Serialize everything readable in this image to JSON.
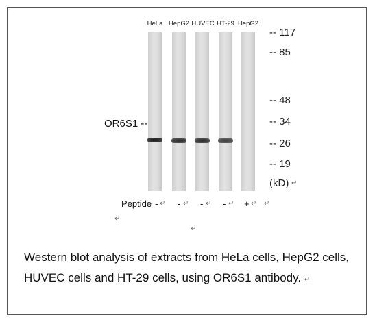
{
  "lanes": [
    {
      "label": "HeLa",
      "peptide": "-",
      "band_intensity": 1.0
    },
    {
      "label": "HepG2",
      "peptide": "-",
      "band_intensity": 0.9
    },
    {
      "label": "HUVEC",
      "peptide": "-",
      "band_intensity": 0.9
    },
    {
      "label": "HT-29",
      "peptide": "-",
      "band_intensity": 0.8
    },
    {
      "label": "HepG2",
      "peptide": "+",
      "band_intensity": 0.0
    }
  ],
  "markers": [
    "-- 117",
    "-- 85",
    "-- 48",
    "-- 34",
    "-- 26",
    "-- 19"
  ],
  "unit": "(kD)",
  "protein_label": "OR6S1 --",
  "peptide_label": "Peptide",
  "return_mark": "↵",
  "caption": "Western blot analysis of extracts from HeLa cells, HepG2 cells, HUVEC cells and HT-29 cells, using OR6S1 antibody."
}
